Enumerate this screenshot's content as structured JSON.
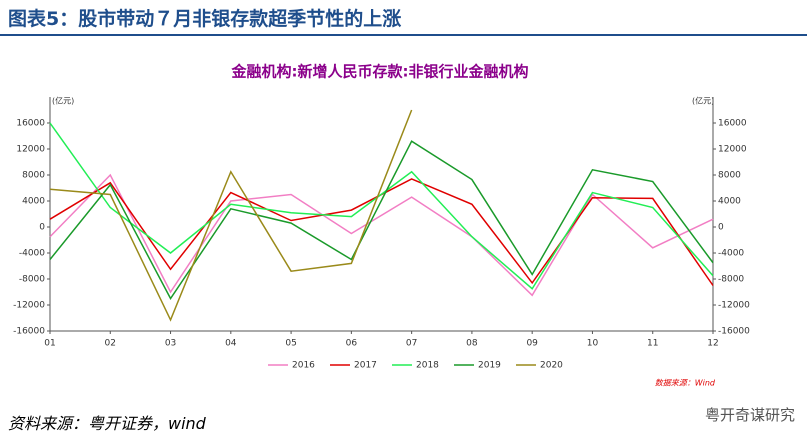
{
  "header": "图表5：股市带动７月非银存款超季节性的上涨",
  "chart_data": {
    "type": "line",
    "title": "金融机构:新增人民币存款:非银行业金融机构",
    "y_unit": "(亿元)",
    "y2_unit": "(亿元)",
    "categories": [
      "01",
      "02",
      "03",
      "04",
      "05",
      "06",
      "07",
      "08",
      "09",
      "10",
      "11",
      "12"
    ],
    "ylim": [
      -16000,
      20000
    ],
    "yticks": [
      -16000,
      -12000,
      -8000,
      -4000,
      0,
      4000,
      8000,
      12000,
      16000
    ],
    "y2lim": [
      -16000,
      20000
    ],
    "y2ticks": [
      -16000,
      -12000,
      -8000,
      -4000,
      0,
      4000,
      8000,
      12000,
      16000
    ],
    "grid": false,
    "legend": "bottom",
    "note": "数据来源：Wind",
    "series": [
      {
        "name": "2016",
        "color": "#f27ec4",
        "values": [
          -1500,
          8000,
          -10000,
          4000,
          5000,
          -1000,
          4600,
          -1500,
          -10500,
          5000,
          -3200,
          1200
        ]
      },
      {
        "name": "2017",
        "color": "#e00000",
        "values": [
          1200,
          6800,
          -6500,
          5300,
          1000,
          2600,
          7400,
          3500,
          -8600,
          4500,
          4400,
          -9000
        ]
      },
      {
        "name": "2018",
        "color": "#22ee55",
        "values": [
          16000,
          3000,
          -4000,
          3500,
          2200,
          1600,
          8500,
          -1500,
          -9500,
          5300,
          3000,
          -7500
        ]
      },
      {
        "name": "2019",
        "color": "#1a9a2a",
        "values": [
          -5000,
          6500,
          -11000,
          2800,
          600,
          -5000,
          13200,
          7300,
          -7300,
          8800,
          7000,
          -5500
        ]
      },
      {
        "name": "2020",
        "color": "#9a8a1a",
        "values": [
          5800,
          5000,
          -14300,
          8500,
          -6800,
          -5600,
          18000,
          null,
          null,
          null,
          null,
          null
        ]
      }
    ]
  },
  "source": "资料来源：粤开证券，wind",
  "watermark": "粤开奇谋研究"
}
